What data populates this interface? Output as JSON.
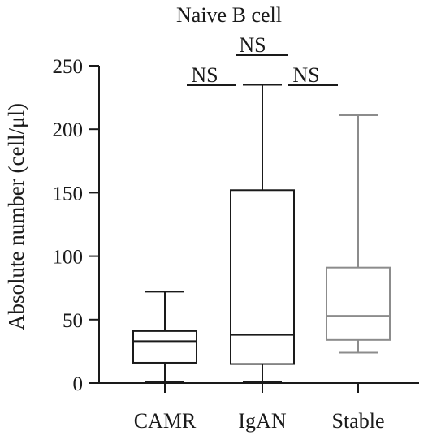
{
  "chart_data": {
    "type": "box",
    "title": "Naive B cell",
    "xlabel": "",
    "ylabel": "Absolute number (cell/μl)",
    "ylim": [
      0,
      250
    ],
    "yticks": [
      0,
      50,
      100,
      150,
      200,
      250
    ],
    "ytick_labels": [
      "0",
      "50",
      "100",
      "150",
      "200",
      "250"
    ],
    "categories": [
      "CAMR",
      "IgAN",
      "Stable"
    ],
    "boxes": [
      {
        "category": "CAMR",
        "min": 1,
        "q1": 16,
        "median": 33,
        "q3": 41,
        "max": 72,
        "color": "#1a1a1a"
      },
      {
        "category": "IgAN",
        "min": 1,
        "q1": 15,
        "median": 38,
        "q3": 152,
        "max": 235,
        "color": "#1a1a1a"
      },
      {
        "category": "Stable",
        "min": 24,
        "q1": 34,
        "median": 53,
        "q3": 91,
        "max": 211,
        "color": "#8c8c8c"
      }
    ],
    "annotations": [
      {
        "text": "NS",
        "from": "CAMR",
        "to": "IgAN"
      },
      {
        "text": "NS",
        "from": "IgAN",
        "to": "IgAN"
      },
      {
        "text": "NS",
        "from": "IgAN",
        "to": "Stable"
      }
    ],
    "grid": false,
    "legend": "none"
  }
}
